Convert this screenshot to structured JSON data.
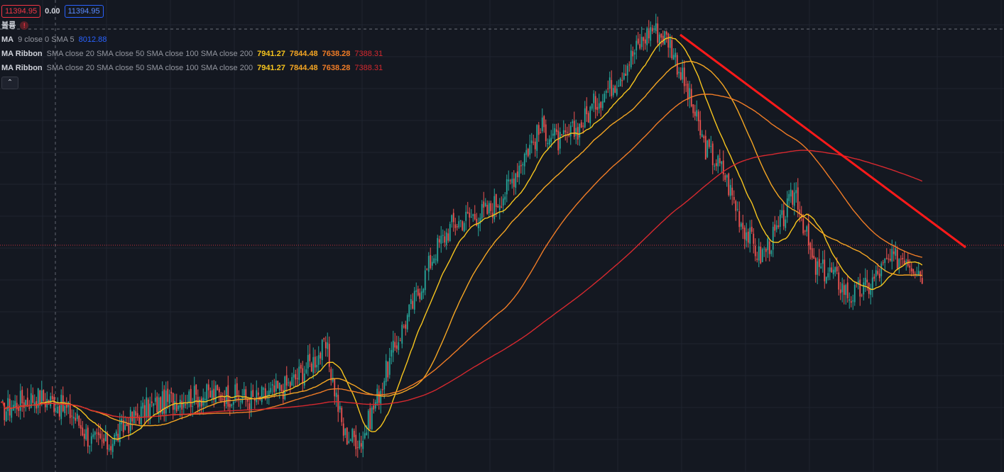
{
  "header": {
    "price_left": "11394.95",
    "change": "0.00",
    "price_right": "11394.95"
  },
  "indicators": {
    "volume_label": "볼륨",
    "volume_badge": "!",
    "ma": {
      "title": "MA",
      "params": "9 close 0 SMA 5",
      "value": "8012.88"
    },
    "ribbons": [
      {
        "title": "MA Ribbon",
        "params": "SMA close 20 SMA close 50 SMA close 100 SMA close 200",
        "v20": "7941.27",
        "v50": "7844.48",
        "v100": "7638.28",
        "v200": "7388.31"
      },
      {
        "title": "MA Ribbon",
        "params": "SMA close 20 SMA close 50 SMA close 100 SMA close 200",
        "v20": "7941.27",
        "v50": "7844.48",
        "v100": "7638.28",
        "v200": "7388.31"
      }
    ],
    "collapse_icon": "chevron-up-icon"
  },
  "colors": {
    "background": "#141821",
    "up_candle": "#26a69a",
    "down_candle": "#ef5350",
    "ma20": "#f7c51e",
    "ma50": "#f5a623",
    "ma100": "#f07c26",
    "ma200": "#d6292f",
    "trendline": "#ff1a1a",
    "price_line": "#f23645"
  },
  "chart_data": {
    "type": "line",
    "series": [
      {
        "values": [
          6450,
          6560,
          6610,
          6550,
          6420,
          6130,
          6100,
          6330,
          6480,
          6550,
          6600,
          6620,
          6640,
          6620,
          6580,
          6650,
          6750,
          6950,
          7150,
          6200,
          6150,
          6700,
          7250,
          7700,
          8180,
          8480,
          8560,
          8620,
          8850,
          9250,
          9520,
          9350,
          9530,
          9820,
          10020,
          10320,
          10600,
          10470,
          9900,
          9300,
          9050,
          8500,
          8120,
          8400,
          8850,
          8000,
          7950,
          7700,
          7800,
          8050,
          8150,
          7950
        ]
      }
    ]
  }
}
